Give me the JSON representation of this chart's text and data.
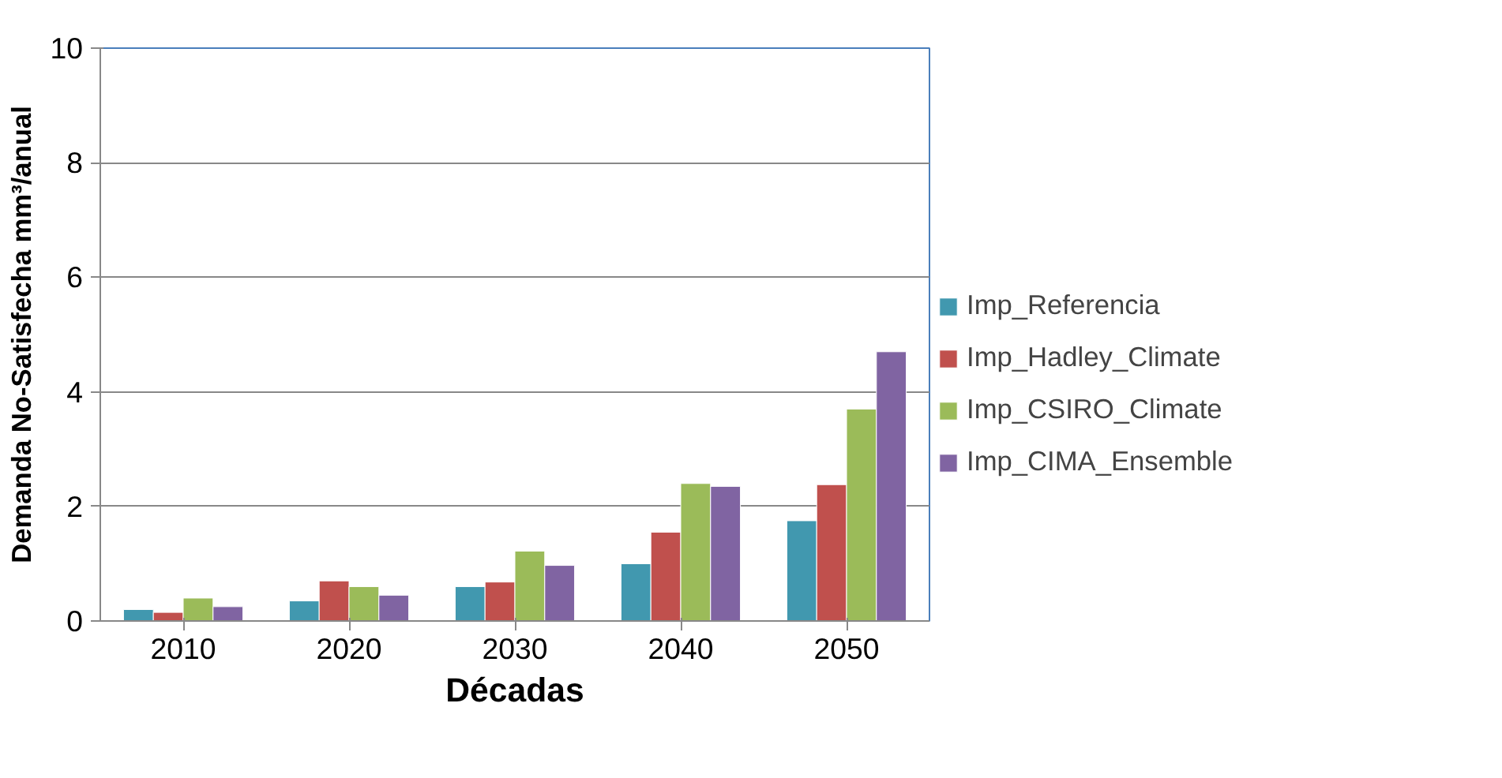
{
  "chart_data": {
    "type": "bar",
    "xlabel": "Décadas",
    "ylabel": "Demanda No-Satisfecha mm³/anual",
    "categories": [
      "2010",
      "2020",
      "2030",
      "2040",
      "2050"
    ],
    "series": [
      {
        "name": "Imp_Referencia",
        "color": "#4198af",
        "values": [
          0.2,
          0.35,
          0.6,
          1.0,
          1.75
        ]
      },
      {
        "name": "Imp_Hadley_Climate",
        "color": "#c0504d",
        "values": [
          0.15,
          0.7,
          0.68,
          1.55,
          2.38
        ]
      },
      {
        "name": "Imp_CSIRO_Climate",
        "color": "#9bbb59",
        "values": [
          0.4,
          0.6,
          1.22,
          2.4,
          3.7
        ]
      },
      {
        "name": "Imp_CIMA_Ensemble",
        "color": "#8064a2",
        "values": [
          0.25,
          0.45,
          0.97,
          2.35,
          4.7
        ]
      }
    ],
    "ylim": [
      0,
      10
    ],
    "yticks": [
      0,
      2,
      4,
      6,
      8,
      10
    ],
    "grid": "y",
    "legend": "right"
  }
}
